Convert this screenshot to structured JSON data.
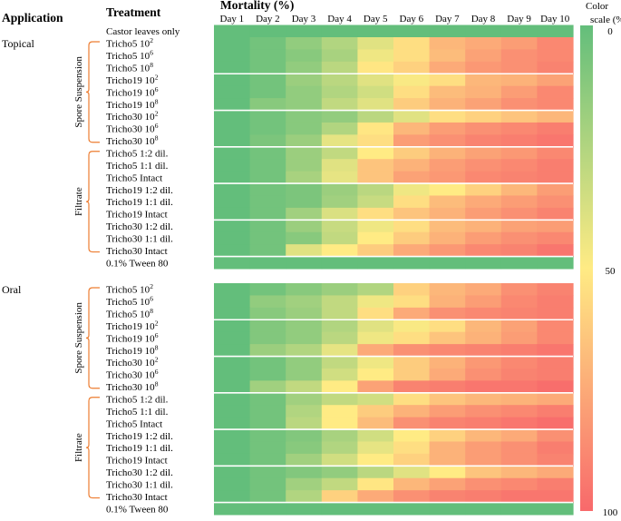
{
  "chart_data": {
    "type": "heatmap",
    "title": "Mortality (%)",
    "header_application": "Application",
    "header_treatment": "Treatment",
    "color_scale_title": [
      "Color",
      "scale (%)"
    ],
    "color_scale_ticks": [
      "0",
      "50",
      "100"
    ],
    "scale_min": 0,
    "scale_max": 100,
    "colors": {
      "low": "#63be7b",
      "mid": "#ffeb84",
      "high": "#f8696b"
    },
    "days": [
      "Day 1",
      "Day 2",
      "Day 3",
      "Day 4",
      "Day 5",
      "Day 6",
      "Day 7",
      "Day 8",
      "Day 9",
      "Day 10"
    ],
    "control_label": "Castor leaves only",
    "control_values": [
      0,
      0,
      0,
      0,
      0,
      0,
      0,
      0,
      0,
      0
    ],
    "applications": [
      {
        "name": "Topical",
        "groups": [
          {
            "name": "Spore Suspension",
            "rows": [
              {
                "prefix": "Tricho5 10",
                "sup": "2",
                "values": [
                  0,
                  5,
                  15,
                  25,
                  40,
                  55,
                  70,
                  75,
                  80,
                  88
                ]
              },
              {
                "prefix": "Tricho5 10",
                "sup": "6",
                "values": [
                  0,
                  5,
                  12,
                  22,
                  45,
                  55,
                  68,
                  78,
                  85,
                  88
                ]
              },
              {
                "prefix": "Tricho5 10",
                "sup": "8",
                "values": [
                  0,
                  5,
                  15,
                  28,
                  52,
                  60,
                  75,
                  82,
                  85,
                  90
                ]
              },
              {
                "prefix": "Tricho19 10",
                "sup": "2",
                "values": [
                  0,
                  5,
                  18,
                  28,
                  40,
                  48,
                  55,
                  70,
                  72,
                  78
                ]
              },
              {
                "prefix": "Tricho19 10",
                "sup": "6",
                "values": [
                  0,
                  5,
                  15,
                  25,
                  35,
                  55,
                  68,
                  72,
                  80,
                  88
                ]
              },
              {
                "prefix": "Tricho19 10",
                "sup": "8",
                "values": [
                  0,
                  12,
                  15,
                  30,
                  40,
                  62,
                  72,
                  78,
                  85,
                  88
                ]
              },
              {
                "prefix": "Tricho30 10",
                "sup": "2",
                "values": [
                  0,
                  5,
                  12,
                  15,
                  28,
                  40,
                  55,
                  60,
                  65,
                  70
                ]
              },
              {
                "prefix": "Tricho30 10",
                "sup": "6",
                "values": [
                  0,
                  5,
                  12,
                  25,
                  52,
                  70,
                  80,
                  85,
                  88,
                  92
                ]
              },
              {
                "prefix": "Tricho30 10",
                "sup": "8",
                "values": [
                  0,
                  8,
                  18,
                  42,
                  55,
                  80,
                  85,
                  90,
                  92,
                  95
                ]
              }
            ]
          },
          {
            "name": "Filtrate",
            "rows": [
              {
                "prefix": "Tricho5 1:2 dil.",
                "sup": "",
                "values": [
                  0,
                  5,
                  18,
                  30,
                  50,
                  62,
                  72,
                  78,
                  82,
                  88
                ]
              },
              {
                "prefix": "Tricho5 1:1 dil.",
                "sup": "",
                "values": [
                  0,
                  5,
                  18,
                  40,
                  65,
                  72,
                  80,
                  85,
                  88,
                  92
                ]
              },
              {
                "prefix": "Tricho5 Intact",
                "sup": "",
                "values": [
                  0,
                  5,
                  22,
                  42,
                  65,
                  78,
                  82,
                  88,
                  90,
                  92
                ]
              },
              {
                "prefix": "Tricho19 1:2 dil.",
                "sup": "",
                "values": [
                  0,
                  5,
                  8,
                  18,
                  28,
                  45,
                  50,
                  60,
                  70,
                  80
                ]
              },
              {
                "prefix": "Tricho19 1:1 dil.",
                "sup": "",
                "values": [
                  0,
                  5,
                  8,
                  20,
                  32,
                  55,
                  68,
                  75,
                  80,
                  85
                ]
              },
              {
                "prefix": "Tricho19 Intact",
                "sup": "",
                "values": [
                  0,
                  5,
                  20,
                  38,
                  55,
                  65,
                  72,
                  80,
                  85,
                  90
                ]
              },
              {
                "prefix": "Tricho30 1:2 dil.",
                "sup": "",
                "values": [
                  0,
                  5,
                  18,
                  32,
                  45,
                  55,
                  68,
                  72,
                  78,
                  80
                ]
              },
              {
                "prefix": "Tricho30 1:1 dil.",
                "sup": "",
                "values": [
                  0,
                  5,
                  12,
                  30,
                  50,
                  62,
                  72,
                  80,
                  85,
                  88
                ]
              },
              {
                "prefix": "Tricho30 Intact",
                "sup": "",
                "values": [
                  0,
                  5,
                  40,
                  50,
                  62,
                  75,
                  82,
                  88,
                  90,
                  95
                ]
              }
            ]
          }
        ],
        "tween_label": "0.1% Tween 80",
        "tween_values": [
          0,
          0,
          0,
          0,
          0,
          0,
          0,
          0,
          0,
          0
        ]
      },
      {
        "name": "Oral",
        "groups": [
          {
            "name": "Spore Suspension",
            "rows": [
              {
                "prefix": "Tricho5 10",
                "sup": "2",
                "values": [
                  0,
                  5,
                  12,
                  18,
                  25,
                  60,
                  70,
                  75,
                  85,
                  90
                ]
              },
              {
                "prefix": "Tricho5 10",
                "sup": "6",
                "values": [
                  0,
                  15,
                  20,
                  30,
                  45,
                  55,
                  72,
                  80,
                  88,
                  92
                ]
              },
              {
                "prefix": "Tricho5 10",
                "sup": "8",
                "values": [
                  0,
                  12,
                  18,
                  30,
                  55,
                  75,
                  85,
                  88,
                  90,
                  92
                ]
              },
              {
                "prefix": "Tricho19 10",
                "sup": "2",
                "values": [
                  0,
                  10,
                  15,
                  25,
                  40,
                  48,
                  55,
                  70,
                  78,
                  88
                ]
              },
              {
                "prefix": "Tricho19 10",
                "sup": "6",
                "values": [
                  0,
                  10,
                  15,
                  28,
                  45,
                  55,
                  65,
                  72,
                  80,
                  88
                ]
              },
              {
                "prefix": "Tricho19 10",
                "sup": "8",
                "values": [
                  0,
                  18,
                  25,
                  42,
                  75,
                  85,
                  88,
                  90,
                  92,
                  95
                ]
              },
              {
                "prefix": "Tricho30 10",
                "sup": "2",
                "values": [
                  0,
                  5,
                  15,
                  30,
                  45,
                  62,
                  72,
                  82,
                  88,
                  92
                ]
              },
              {
                "prefix": "Tricho30 10",
                "sup": "6",
                "values": [
                  0,
                  5,
                  15,
                  35,
                  50,
                  62,
                  75,
                  85,
                  90,
                  92
                ]
              },
              {
                "prefix": "Tricho30 10",
                "sup": "8",
                "values": [
                  0,
                  20,
                  30,
                  50,
                  78,
                  90,
                  92,
                  95,
                  95,
                  98
                ]
              }
            ]
          },
          {
            "name": "Filtrate",
            "rows": [
              {
                "prefix": "Tricho5 1:2 dil.",
                "sup": "",
                "values": [
                  0,
                  5,
                  20,
                  30,
                  35,
                  55,
                  65,
                  70,
                  72,
                  75
                ]
              },
              {
                "prefix": "Tricho5 1:1 dil.",
                "sup": "",
                "values": [
                  0,
                  5,
                  25,
                  50,
                  62,
                  72,
                  80,
                  85,
                  88,
                  92
                ]
              },
              {
                "prefix": "Tricho5 Intact",
                "sup": "",
                "values": [
                  0,
                  5,
                  28,
                  50,
                  68,
                  85,
                  90,
                  92,
                  95,
                  98
                ]
              },
              {
                "prefix": "Tricho19 1:2 dil.",
                "sup": "",
                "values": [
                  0,
                  5,
                  10,
                  22,
                  35,
                  50,
                  60,
                  70,
                  75,
                  85
                ]
              },
              {
                "prefix": "Tricho19 1:1 dil.",
                "sup": "",
                "values": [
                  0,
                  5,
                  12,
                  25,
                  42,
                  55,
                  72,
                  80,
                  85,
                  92
                ]
              },
              {
                "prefix": "Tricho19 Intact",
                "sup": "",
                "values": [
                  0,
                  5,
                  20,
                  35,
                  50,
                  60,
                  72,
                  80,
                  85,
                  90
                ]
              },
              {
                "prefix": "Tricho30 1:2 dil.",
                "sup": "",
                "values": [
                  0,
                  5,
                  10,
                  15,
                  28,
                  40,
                  50,
                  65,
                  70,
                  75
                ]
              },
              {
                "prefix": "Tricho30 1:1 dil.",
                "sup": "",
                "values": [
                  0,
                  5,
                  20,
                  30,
                  52,
                  70,
                  78,
                  85,
                  88,
                  92
                ]
              },
              {
                "prefix": "Tricho30 Intact",
                "sup": "",
                "values": [
                  0,
                  5,
                  25,
                  60,
                  75,
                  85,
                  90,
                  92,
                  95,
                  95
                ]
              }
            ]
          }
        ],
        "tween_label": "0.1% Tween 80",
        "tween_values": [
          0,
          0,
          0,
          0,
          0,
          0,
          0,
          0,
          0,
          0
        ]
      }
    ]
  }
}
